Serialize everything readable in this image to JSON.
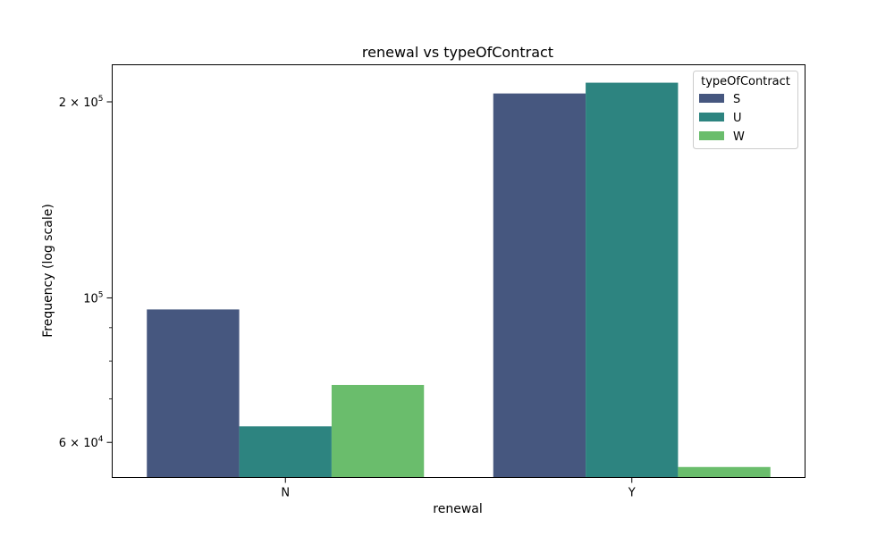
{
  "chart_data": {
    "type": "bar",
    "title": "renewal vs typeOfContract",
    "xlabel": "renewal",
    "ylabel": "Frequency (log scale)",
    "yscale": "log",
    "ylim": [
      53000,
      228000
    ],
    "categories": [
      "N",
      "Y"
    ],
    "legend": {
      "title": "typeOfContract",
      "placement": "top-right"
    },
    "series": [
      {
        "name": "S",
        "color": "#46577f",
        "values": [
          96000,
          206000
        ]
      },
      {
        "name": "U",
        "color": "#2d8480",
        "values": [
          63500,
          214000
        ]
      },
      {
        "name": "W",
        "color": "#6abd6c",
        "values": [
          73500,
          55000
        ]
      }
    ],
    "yticks": [
      {
        "value": 60000,
        "base": "6",
        "exp": "4"
      },
      {
        "value": 100000,
        "base": "10",
        "exp": "5"
      },
      {
        "value": 200000,
        "base": "2",
        "exp": "5"
      }
    ],
    "minor_yticks": [
      70000,
      80000,
      90000
    ],
    "grid": false
  }
}
